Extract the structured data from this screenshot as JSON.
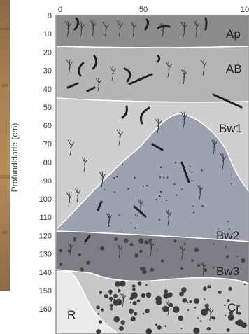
{
  "figure": {
    "y_axis_label": "Profundidade (cm)",
    "y_ticks": [
      "0",
      "10",
      "20",
      "30",
      "40",
      "50",
      "60",
      "70",
      "80",
      "90",
      "100",
      "110",
      "120",
      "130",
      "140",
      "150",
      "160"
    ],
    "x_ticks": [
      "0",
      "50",
      "10"
    ],
    "horizons": [
      {
        "label": "Ap",
        "depth_top_cm": 0,
        "depth_bottom_cm": 12,
        "color": "#8c8c8c"
      },
      {
        "label": "AB",
        "depth_top_cm": 12,
        "depth_bottom_cm": 42,
        "color": "#b4b4b4"
      },
      {
        "label": "Bw1",
        "depth_top_cm": 42,
        "depth_bottom_cm": 110,
        "color": "#cfcfcf"
      },
      {
        "label": "Bw2",
        "depth_top_cm": 60,
        "depth_bottom_cm": 124,
        "color": "#9da2b0"
      },
      {
        "label": "Bw3",
        "depth_top_cm": 124,
        "depth_bottom_cm": 140,
        "color": "#7e7f86"
      },
      {
        "label": "Cr",
        "depth_top_cm": 140,
        "depth_bottom_cm": 165,
        "color": "#c8c8c8"
      },
      {
        "label": "R",
        "depth_top_cm": 140,
        "depth_bottom_cm": 165,
        "color": "#eaeaea"
      }
    ],
    "colors": {
      "root": "#3a3a3a",
      "axis_text": "#333333",
      "border": "#666666"
    }
  }
}
